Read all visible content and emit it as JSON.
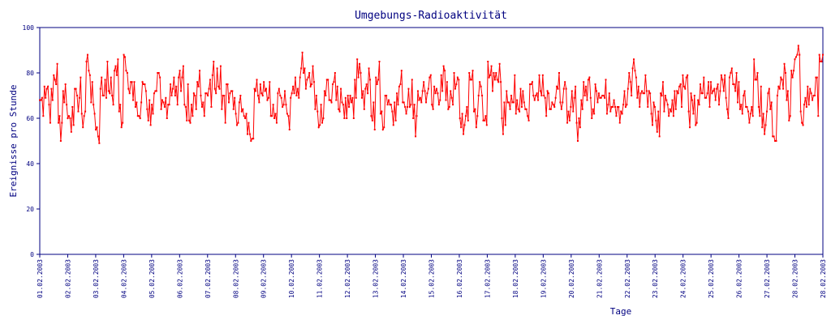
{
  "chart_data": {
    "type": "line",
    "title": "Umgebungs-Radioaktivität",
    "xlabel": "Tage",
    "ylabel": "Ereignisse pro Stunde",
    "ylim": [
      0,
      100
    ],
    "yticks": [
      0,
      20,
      40,
      60,
      80,
      100
    ],
    "xticks": [
      "01.02.2003",
      "02.02.2003",
      "03.02.2003",
      "04.02.2003",
      "05.02.2003",
      "06.02.2003",
      "07.02.2003",
      "08.02.2003",
      "09.02.2003",
      "10.02.2003",
      "11.02.2003",
      "12.02.2003",
      "13.02.2003",
      "14.02.2003",
      "15.02.2003",
      "16.02.2003",
      "17.02.2003",
      "18.02.2003",
      "19.02.2003",
      "20.02.2003",
      "21.02.2003",
      "22.02.2003",
      "23.02.2003",
      "24.02.2003",
      "25.02.2003",
      "26.02.2003",
      "27.02.2003",
      "28.02.2003",
      "28.02.2003"
    ],
    "grid": false,
    "hours": 672,
    "series": [
      {
        "color": "#ff0000",
        "sampled_values": [
          68,
          74,
          66,
          79,
          58,
          72,
          60,
          65,
          70,
          62,
          85,
          67,
          55,
          73,
          77,
          71,
          81,
          63,
          88,
          73,
          68,
          61,
          76,
          64,
          66,
          72,
          64,
          69,
          75,
          70,
          81,
          66,
          59,
          71,
          74,
          67,
          70,
          79,
          82,
          64,
          75,
          72,
          62,
          70,
          60,
          53,
          73,
          67,
          76,
          69,
          66,
          71,
          65,
          62,
          71,
          70,
          82,
          73,
          74,
          64,
          57,
          72,
          68,
          76,
          64,
          66,
          70,
          69,
          86,
          69,
          75,
          61,
          78,
          62,
          70,
          66,
          67,
          74,
          67,
          73,
          60,
          72,
          72,
          71,
          66,
          73,
          79,
          68,
          72,
          73,
          60,
          57,
          80,
          63,
          70,
          59,
          85,
          72,
          77,
          60,
          72,
          70,
          62,
          73,
          64,
          75,
          68,
          79,
          70,
          71,
          66,
          73,
          67,
          58,
          72,
          58,
          68,
          74,
          69,
          75,
          69,
          69,
          71,
          68,
          65,
          66,
          73,
          82,
          69,
          72,
          72,
          62,
          59,
          71,
          70,
          64,
          72,
          74,
          74,
          63,
          62,
          68,
          71,
          71,
          71,
          73,
          79,
          69,
          80,
          72,
          64,
          72,
          58,
          86,
          65,
          62,
          71,
          52,
          70,
          77,
          68,
          81,
          87,
          63,
          69,
          73,
          70,
          88,
          63,
          68
        ],
        "sample_stride": 4
      }
    ]
  }
}
